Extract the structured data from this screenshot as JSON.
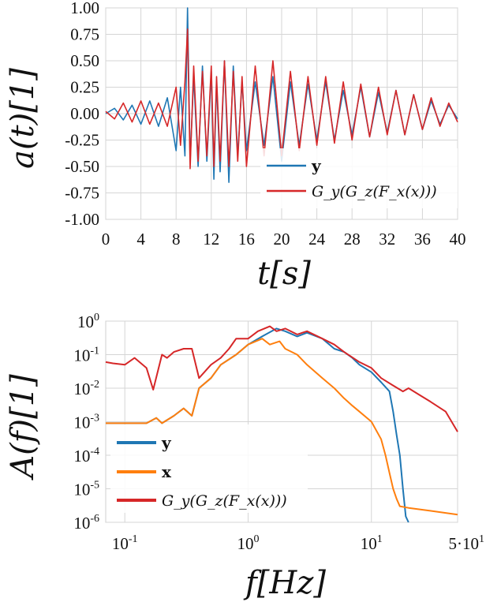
{
  "chart_data": [
    {
      "type": "line",
      "xlabel": "t[s]",
      "ylabel": "a(t)[1]",
      "xlim": [
        0,
        40
      ],
      "ylim": [
        -1.0,
        1.0
      ],
      "x_ticks": [
        "0",
        "4",
        "8",
        "12",
        "16",
        "20",
        "24",
        "28",
        "32",
        "36",
        "40"
      ],
      "y_ticks": [
        "1.00",
        "0.75",
        "0.50",
        "0.25",
        "0.00",
        "-0.25",
        "-0.50",
        "-0.75",
        "-1.00"
      ],
      "grid": true,
      "legend": "bottom-right",
      "series": [
        {
          "name": "y",
          "color": "#1f77b4",
          "x": [
            0,
            1,
            2,
            3,
            4,
            5,
            6,
            7,
            8,
            8.5,
            9,
            9.3,
            9.6,
            10,
            10.5,
            11,
            11.5,
            12,
            12.3,
            12.6,
            13,
            13.5,
            14,
            14.5,
            15,
            15.5,
            16,
            17,
            18,
            19,
            20,
            21,
            22,
            23,
            24,
            25,
            26,
            27,
            28,
            29,
            30,
            31,
            32,
            33,
            34,
            35,
            36,
            37,
            38,
            39,
            40
          ],
          "values": [
            0.0,
            0.05,
            -0.06,
            0.08,
            -0.1,
            0.12,
            -0.12,
            0.15,
            -0.35,
            0.25,
            -0.4,
            1.0,
            -0.45,
            0.35,
            -0.5,
            0.45,
            -0.45,
            0.4,
            -0.62,
            0.3,
            -0.55,
            0.5,
            -0.65,
            0.45,
            -0.4,
            0.3,
            -0.35,
            0.3,
            -0.3,
            0.35,
            -0.45,
            0.3,
            -0.3,
            0.28,
            -0.25,
            0.3,
            -0.25,
            0.22,
            -0.2,
            0.25,
            -0.22,
            0.2,
            -0.18,
            0.22,
            -0.2,
            0.18,
            -0.15,
            0.12,
            -0.1,
            0.08,
            -0.05
          ]
        },
        {
          "name": "G_y(G_z(F_x(x)))",
          "color": "#d62728",
          "x": [
            0,
            1,
            2,
            3,
            4,
            5,
            6,
            7,
            8,
            8.5,
            9,
            9.3,
            9.6,
            10,
            10.5,
            11,
            11.5,
            12,
            12.3,
            12.6,
            13,
            13.5,
            14,
            14.5,
            15,
            15.5,
            16,
            17,
            18,
            19,
            20,
            21,
            22,
            23,
            24,
            25,
            26,
            27,
            28,
            29,
            30,
            31,
            32,
            33,
            34,
            35,
            36,
            37,
            38,
            39,
            40
          ],
          "values": [
            0.02,
            -0.05,
            0.1,
            -0.08,
            0.12,
            -0.1,
            0.1,
            -0.12,
            0.25,
            -0.3,
            0.3,
            0.8,
            -0.52,
            0.45,
            -0.45,
            0.4,
            -0.4,
            0.45,
            -0.5,
            0.35,
            -0.45,
            0.5,
            -0.5,
            0.4,
            -0.45,
            0.35,
            -0.5,
            0.45,
            -0.4,
            0.5,
            -0.4,
            0.4,
            -0.35,
            0.35,
            -0.3,
            0.35,
            -0.28,
            0.3,
            -0.25,
            0.28,
            -0.22,
            0.25,
            -0.2,
            0.22,
            -0.2,
            0.18,
            -0.15,
            0.15,
            -0.12,
            0.1,
            -0.08
          ]
        }
      ]
    },
    {
      "type": "line",
      "xlabel": "f[Hz]",
      "ylabel": "A(f)[1]",
      "x_scale": "log",
      "y_scale": "log",
      "xlim": [
        0.07,
        50
      ],
      "ylim": [
        1e-06,
        1
      ],
      "x_ticks": [
        {
          "value": 0.1,
          "base": "10",
          "exp": "-1"
        },
        {
          "value": 1,
          "base": "10",
          "exp": "0"
        },
        {
          "value": 10,
          "base": "10",
          "exp": "1"
        },
        {
          "value": 50,
          "base": "5·10",
          "exp": "1"
        }
      ],
      "y_ticks": [
        {
          "value": 1,
          "base": "10",
          "exp": "0"
        },
        {
          "value": 0.1,
          "base": "10",
          "exp": "-1"
        },
        {
          "value": 0.01,
          "base": "10",
          "exp": "-2"
        },
        {
          "value": 0.001,
          "base": "10",
          "exp": "-3"
        },
        {
          "value": 0.0001,
          "base": "10",
          "exp": "-4"
        },
        {
          "value": 1e-05,
          "base": "10",
          "exp": "-5"
        },
        {
          "value": 1e-06,
          "base": "10",
          "exp": "-6"
        }
      ],
      "grid": true,
      "legend": "bottom-left",
      "series": [
        {
          "name": "y",
          "color": "#1f77b4",
          "x": [
            0.07,
            0.1,
            0.15,
            0.18,
            0.2,
            0.25,
            0.3,
            0.35,
            0.4,
            0.5,
            0.6,
            0.8,
            1.0,
            1.3,
            1.7,
            2.0,
            2.5,
            3.0,
            4.0,
            5.0,
            6.0,
            7.0,
            8.0,
            10,
            12,
            14,
            15,
            16,
            17,
            18,
            19,
            20
          ],
          "values": [
            0.0009,
            0.0009,
            0.0009,
            0.0013,
            0.0009,
            0.0015,
            0.0025,
            0.0015,
            0.01,
            0.02,
            0.05,
            0.1,
            0.2,
            0.35,
            0.6,
            0.5,
            0.35,
            0.45,
            0.3,
            0.15,
            0.12,
            0.08,
            0.05,
            0.03,
            0.015,
            0.008,
            0.002,
            0.0004,
            0.0001,
            1e-05,
            1.5e-06,
            1e-06
          ]
        },
        {
          "name": "x",
          "color": "#ff7f0e",
          "x": [
            0.07,
            0.1,
            0.15,
            0.18,
            0.2,
            0.25,
            0.3,
            0.35,
            0.4,
            0.5,
            0.6,
            0.8,
            1.0,
            1.3,
            1.5,
            1.8,
            2.0,
            2.5,
            3.0,
            4.0,
            5.0,
            6.0,
            7.0,
            8.0,
            10,
            12,
            13,
            14,
            15,
            16,
            17,
            20,
            30,
            50
          ],
          "values": [
            0.0009,
            0.0009,
            0.0009,
            0.0013,
            0.0009,
            0.0015,
            0.0025,
            0.0015,
            0.01,
            0.02,
            0.05,
            0.1,
            0.2,
            0.3,
            0.2,
            0.25,
            0.15,
            0.1,
            0.05,
            0.02,
            0.01,
            0.005,
            0.003,
            0.002,
            0.001,
            0.0003,
            0.0001,
            3e-05,
            1e-05,
            5e-06,
            3e-06,
            2.7e-06,
            2.2e-06,
            1.7e-06
          ]
        },
        {
          "name": "G_y(G_z(F_x(x)))",
          "color": "#d62728",
          "x": [
            0.07,
            0.08,
            0.1,
            0.12,
            0.15,
            0.17,
            0.2,
            0.22,
            0.25,
            0.3,
            0.35,
            0.4,
            0.5,
            0.6,
            0.7,
            0.8,
            1.0,
            1.2,
            1.5,
            1.7,
            2.0,
            2.5,
            3.0,
            4.0,
            5.0,
            6.0,
            8.0,
            10,
            12,
            15,
            18,
            20,
            25,
            30,
            40,
            50
          ],
          "values": [
            0.06,
            0.055,
            0.05,
            0.08,
            0.04,
            0.009,
            0.1,
            0.08,
            0.12,
            0.15,
            0.15,
            0.02,
            0.05,
            0.08,
            0.15,
            0.3,
            0.3,
            0.5,
            0.7,
            0.5,
            0.6,
            0.4,
            0.5,
            0.3,
            0.2,
            0.12,
            0.06,
            0.04,
            0.02,
            0.012,
            0.008,
            0.01,
            0.006,
            0.004,
            0.002,
            0.0005
          ]
        }
      ]
    }
  ],
  "legends": {
    "top": [
      {
        "label": "y",
        "style": "bold",
        "color": "#1f77b4"
      },
      {
        "label": "G_y(G_z(F_x(x)))",
        "style": "math",
        "color": "#d62728"
      }
    ],
    "bottom": [
      {
        "label": "y",
        "style": "bold",
        "color": "#1f77b4"
      },
      {
        "label": "x",
        "style": "bold",
        "color": "#ff7f0e"
      },
      {
        "label": "G_y(G_z(F_x(x)))",
        "style": "math",
        "color": "#d62728"
      }
    ]
  }
}
